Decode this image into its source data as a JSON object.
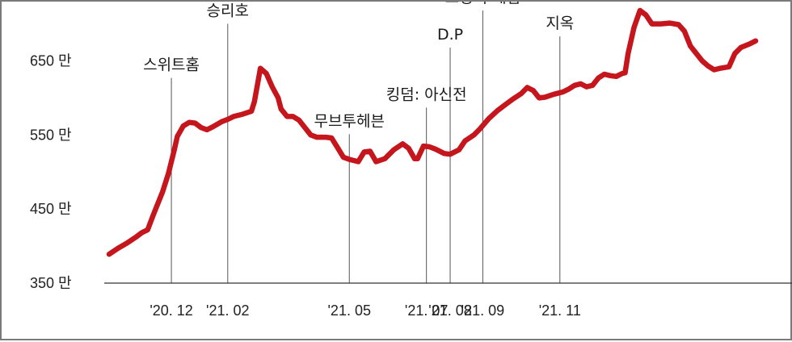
{
  "chart_data": {
    "type": "line",
    "title": "",
    "xlabel": "",
    "ylabel": "",
    "ylim": [
      350,
      730
    ],
    "yticks": [
      350,
      450,
      550,
      650
    ],
    "y_tick_labels": [
      "350 만",
      "450 만",
      "550 만",
      "650 만"
    ],
    "x_ticks": [
      {
        "label": "'20. 12",
        "t": 2.1
      },
      {
        "label": "'21. 02",
        "t": 4.0
      },
      {
        "label": "'21. 05",
        "t": 8.1
      },
      {
        "label": "'21. 07",
        "t": 10.7
      },
      {
        "label": "'21. 08",
        "t": 11.5
      },
      {
        "label": "'21. 09",
        "t": 12.6
      },
      {
        "label": "'21. 11",
        "t": 15.2
      }
    ],
    "annotations": [
      {
        "label": "스위트홈",
        "t": 2.1,
        "top": 627
      },
      {
        "label": "승리호",
        "t": 4.0,
        "top": 700
      },
      {
        "label": "무브투헤븐",
        "t": 8.1,
        "top": 551
      },
      {
        "label": "킹덤: 아신전",
        "t": 10.7,
        "top": 587
      },
      {
        "label": "D.P",
        "t": 11.5,
        "top": 668
      },
      {
        "label": "오징어 게임",
        "t": 12.6,
        "top": 718
      },
      {
        "label": "지옥",
        "t": 15.2,
        "top": 683
      }
    ],
    "series": [
      {
        "color": "#c4161c",
        "points": [
          [
            0.0,
            389
          ],
          [
            0.3,
            397
          ],
          [
            0.6,
            404
          ],
          [
            0.9,
            412
          ],
          [
            1.1,
            418
          ],
          [
            1.3,
            422
          ],
          [
            1.5,
            443
          ],
          [
            1.8,
            473
          ],
          [
            2.0,
            498
          ],
          [
            2.2,
            530
          ],
          [
            2.3,
            548
          ],
          [
            2.5,
            562
          ],
          [
            2.7,
            567
          ],
          [
            2.9,
            566
          ],
          [
            3.1,
            560
          ],
          [
            3.3,
            557
          ],
          [
            3.5,
            561
          ],
          [
            3.8,
            568
          ],
          [
            4.0,
            571
          ],
          [
            4.2,
            575
          ],
          [
            4.5,
            578
          ],
          [
            4.8,
            582
          ],
          [
            4.9,
            595
          ],
          [
            5.1,
            640
          ],
          [
            5.3,
            633
          ],
          [
            5.5,
            615
          ],
          [
            5.7,
            600
          ],
          [
            5.8,
            585
          ],
          [
            6.0,
            575
          ],
          [
            6.2,
            575
          ],
          [
            6.4,
            570
          ],
          [
            6.6,
            560
          ],
          [
            6.8,
            550
          ],
          [
            7.0,
            547
          ],
          [
            7.3,
            547
          ],
          [
            7.5,
            546
          ],
          [
            7.7,
            533
          ],
          [
            7.9,
            520
          ],
          [
            8.1,
            517
          ],
          [
            8.4,
            514
          ],
          [
            8.6,
            527
          ],
          [
            8.8,
            528
          ],
          [
            9.0,
            514
          ],
          [
            9.3,
            518
          ],
          [
            9.6,
            530
          ],
          [
            9.9,
            538
          ],
          [
            10.1,
            532
          ],
          [
            10.3,
            518
          ],
          [
            10.4,
            518
          ],
          [
            10.6,
            535
          ],
          [
            10.8,
            534
          ],
          [
            11.0,
            531
          ],
          [
            11.3,
            525
          ],
          [
            11.5,
            524
          ],
          [
            11.8,
            530
          ],
          [
            12.0,
            542
          ],
          [
            12.3,
            550
          ],
          [
            12.5,
            558
          ],
          [
            12.8,
            572
          ],
          [
            13.1,
            583
          ],
          [
            13.4,
            592
          ],
          [
            13.6,
            598
          ],
          [
            13.9,
            606
          ],
          [
            14.1,
            614
          ],
          [
            14.3,
            610
          ],
          [
            14.5,
            600
          ],
          [
            14.7,
            601
          ],
          [
            15.0,
            605
          ],
          [
            15.3,
            608
          ],
          [
            15.5,
            612
          ],
          [
            15.7,
            617
          ],
          [
            15.9,
            619
          ],
          [
            16.1,
            615
          ],
          [
            16.3,
            617
          ],
          [
            16.5,
            627
          ],
          [
            16.7,
            632
          ],
          [
            16.9,
            630
          ],
          [
            17.1,
            629
          ],
          [
            17.3,
            633
          ],
          [
            17.4,
            634
          ],
          [
            17.5,
            660
          ],
          [
            17.7,
            695
          ],
          [
            17.9,
            718
          ],
          [
            18.1,
            712
          ],
          [
            18.3,
            700
          ],
          [
            18.6,
            700
          ],
          [
            18.9,
            701
          ],
          [
            19.2,
            699
          ],
          [
            19.4,
            690
          ],
          [
            19.6,
            670
          ],
          [
            19.8,
            660
          ],
          [
            20.0,
            650
          ],
          [
            20.2,
            643
          ],
          [
            20.4,
            638
          ],
          [
            20.6,
            640
          ],
          [
            20.9,
            642
          ],
          [
            21.1,
            660
          ],
          [
            21.3,
            668
          ],
          [
            21.6,
            673
          ],
          [
            21.8,
            677
          ]
        ]
      }
    ],
    "grid": false,
    "legend": "none"
  }
}
